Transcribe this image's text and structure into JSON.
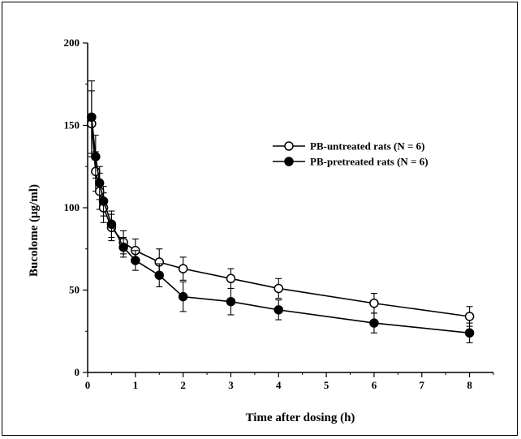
{
  "chart_data": {
    "type": "line",
    "title": "",
    "xlabel": "Time after dosing  (h)",
    "ylabel": "Bucolome (μg/ml)",
    "xlim": [
      0,
      8.5
    ],
    "ylim": [
      0,
      200
    ],
    "x_ticks": [
      0,
      1,
      2,
      3,
      4,
      5,
      6,
      7,
      8
    ],
    "y_ticks": [
      0,
      50,
      100,
      150,
      200
    ],
    "grid": false,
    "legend_position": "top-right",
    "series": [
      {
        "name": "PB-untreated rats (N = 6)",
        "marker": "open-circle",
        "color": "#000000",
        "x": [
          0.083,
          0.167,
          0.25,
          0.333,
          0.5,
          0.75,
          1,
          1.5,
          2,
          3,
          4,
          6,
          8
        ],
        "y": [
          151,
          122,
          110,
          100,
          88,
          79,
          74,
          67,
          63,
          57,
          51,
          42,
          34
        ],
        "err": [
          20,
          12,
          11,
          9,
          8,
          7,
          7,
          8,
          7,
          6,
          6,
          6,
          6
        ]
      },
      {
        "name": "PB-pretreated rats (N = 6)",
        "marker": "filled-circle",
        "color": "#000000",
        "x": [
          0.083,
          0.167,
          0.25,
          0.333,
          0.5,
          0.75,
          1,
          1.5,
          2,
          3,
          4,
          6,
          8
        ],
        "y": [
          155,
          131,
          115,
          104,
          90,
          76,
          68,
          59,
          46,
          43,
          38,
          30,
          24
        ],
        "err": [
          22,
          13,
          10,
          9,
          8,
          6,
          6,
          7,
          9,
          8,
          6,
          6,
          6
        ]
      }
    ]
  }
}
